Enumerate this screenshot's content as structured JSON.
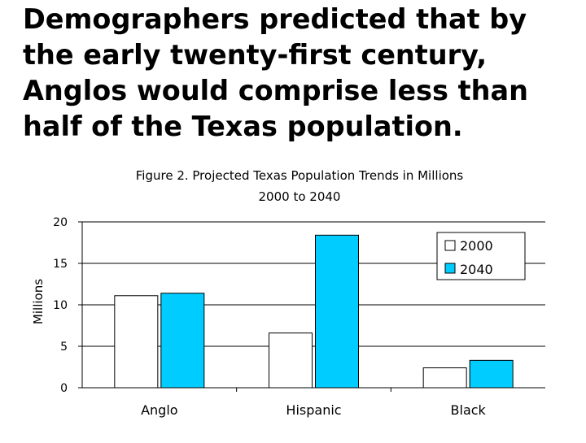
{
  "slide": {
    "title_lines": [
      "Demographers predicted that by",
      "the early twenty-first century,",
      "Anglos would comprise less than",
      "half of the Texas population."
    ]
  },
  "chart_data": {
    "type": "bar",
    "title": "Figure 2. Projected Texas Population Trends in Millions",
    "subtitle": "2000 to 2040",
    "ylabel": "Millions",
    "xlabel": "",
    "categories": [
      "Anglo",
      "Hispanic",
      "Black"
    ],
    "series": [
      {
        "name": "2000",
        "values": [
          11.1,
          6.6,
          2.4
        ],
        "color": "#ffffff"
      },
      {
        "name": "2040",
        "values": [
          11.4,
          18.4,
          3.3
        ],
        "color": "#00ccff"
      }
    ],
    "ylim": [
      0,
      20
    ],
    "yticks": [
      0,
      5,
      10,
      15,
      20
    ],
    "grid": true,
    "legend": "top-right"
  }
}
